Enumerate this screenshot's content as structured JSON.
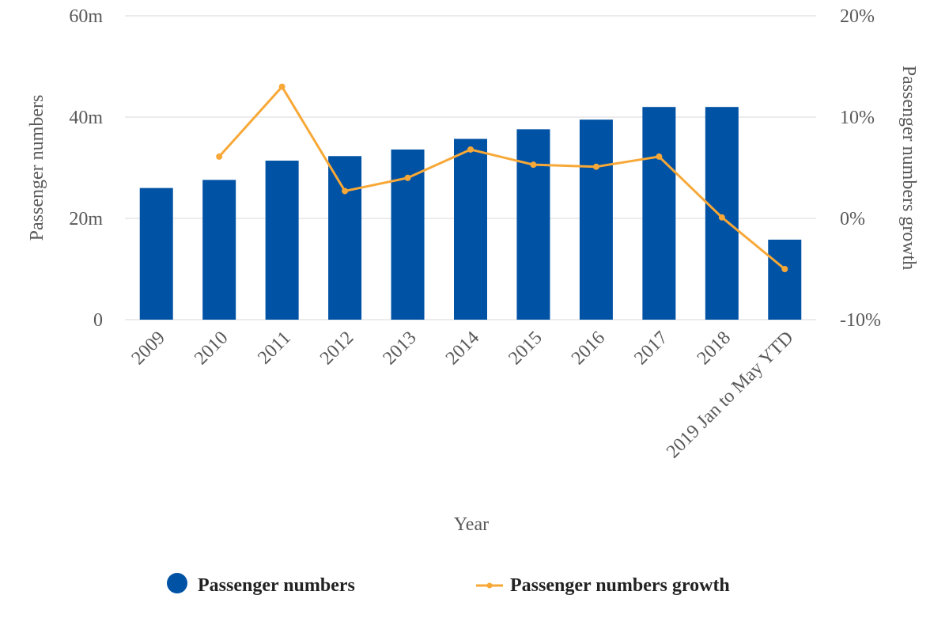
{
  "chart_data": {
    "type": "bar",
    "categories": [
      "2009",
      "2010",
      "2011",
      "2012",
      "2013",
      "2014",
      "2015",
      "2016",
      "2017",
      "2018",
      "2019 Jan to May YTD"
    ],
    "series": [
      {
        "name": "Passenger numbers",
        "type": "bar",
        "axis": "left",
        "color": "#0052a5",
        "values": [
          26,
          27.6,
          31.4,
          32.3,
          33.6,
          35.7,
          37.6,
          39.5,
          42,
          42,
          15.8
        ]
      },
      {
        "name": "Passenger numbers growth",
        "type": "line",
        "axis": "right",
        "color": "#f7a837",
        "values": [
          null,
          6.1,
          13.0,
          2.7,
          4.0,
          6.8,
          5.3,
          5.1,
          6.1,
          0.1,
          -5.0
        ]
      }
    ],
    "y_left": {
      "label": "Passenger numbers",
      "ylim": [
        0,
        60
      ],
      "ticks": [
        "0",
        "20m",
        "40m",
        "60m"
      ],
      "tick_values": [
        0,
        20,
        40,
        60
      ]
    },
    "y_right": {
      "label": "Passenger numbers growth",
      "ylim": [
        -10,
        20
      ],
      "ticks": [
        "-10%",
        "0%",
        "10%",
        "20%"
      ],
      "tick_values": [
        -10,
        0,
        10,
        20
      ]
    },
    "xlabel": "Year",
    "grid": true,
    "legend_position": "bottom"
  }
}
